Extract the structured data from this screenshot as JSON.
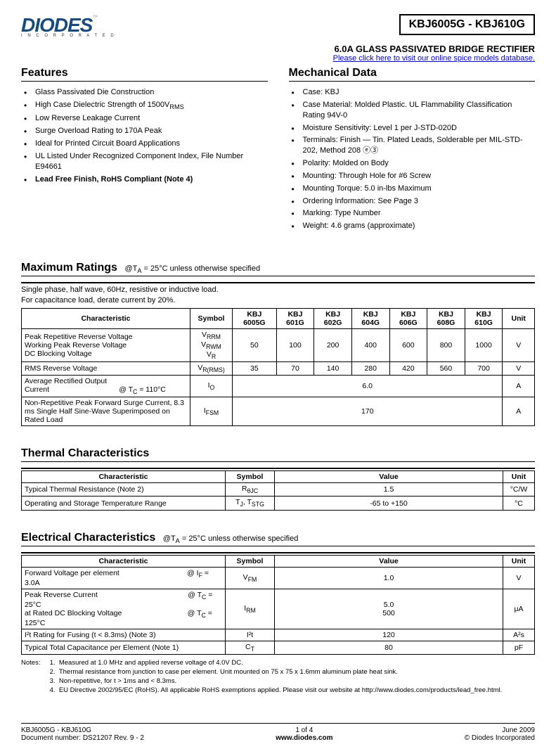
{
  "logo": {
    "text": "DIODES",
    "tm": "™",
    "sub": "I N C O R P O R A T E D"
  },
  "part_number": "KBJ6005G - KBJ610G",
  "subtitle": "6.0A GLASS PASSIVATED BRIDGE RECTIFIER",
  "link": "Please click here to visit our online spice models database.",
  "features": {
    "title": "Features",
    "items": [
      "Glass Passivated Die Construction",
      "High Case Dielectric Strength of 1500V<sub>RMS</sub>",
      "Low Reverse Leakage Current",
      "Surge Overload Rating to 170A Peak",
      "Ideal for Printed Circuit Board Applications",
      "UL Listed Under Recognized Component Index, File Number E94661",
      "<b>Lead Free Finish, RoHS Compliant (Note 4)</b>"
    ]
  },
  "mechanical": {
    "title": "Mechanical Data",
    "items": [
      "Case: KBJ",
      "Case Material:  Molded Plastic.  UL Flammability Classification Rating 94V-0",
      "Moisture Sensitivity:  Level 1 per J-STD-020D",
      "Terminals:  Finish — Tin.  Plated Leads, Solderable per MIL-STD-202, Method 208 ⓔ③",
      "Polarity: Molded on Body",
      "Mounting: Through Hole for #6 Screw",
      "Mounting Torque: 5.0 in-lbs Maximum",
      "Ordering Information:  See Page 3",
      "Marking: Type Number",
      "Weight: 4.6 grams (approximate)"
    ]
  },
  "maxratings": {
    "title": "Maximum Ratings",
    "cond": "@T<sub>A</sub> = 25°C unless otherwise specified",
    "note": "Single phase, half wave, 60Hz, resistive or inductive load.<br>For capacitance load, derate current by 20%.",
    "headers": [
      "Characteristic",
      "Symbol",
      "KBJ 6005G",
      "KBJ 601G",
      "KBJ 602G",
      "KBJ 604G",
      "KBJ 606G",
      "KBJ 608G",
      "KBJ 610G",
      "Unit"
    ],
    "rows": [
      {
        "char": "Peak Repetitive Reverse Voltage<br>Working Peak Reverse Voltage<br>DC Blocking Voltage",
        "sym": "V<sub>RRM</sub><br>V<sub>RWM</sub><br>V<sub>R</sub>",
        "vals": [
          "50",
          "100",
          "200",
          "400",
          "600",
          "800",
          "1000"
        ],
        "unit": "V"
      },
      {
        "char": "RMS Reverse Voltage",
        "sym": "V<sub>R(RMS)</sub>",
        "vals": [
          "35",
          "70",
          "140",
          "280",
          "420",
          "560",
          "700"
        ],
        "unit": "V"
      },
      {
        "char": "Average Rectified Output Current&nbsp;&nbsp;&nbsp;&nbsp;&nbsp;&nbsp;&nbsp;&nbsp;&nbsp;&nbsp;&nbsp;&nbsp;&nbsp;&nbsp;&nbsp;&nbsp;&nbsp;&nbsp;&nbsp;&nbsp;&nbsp;&nbsp;&nbsp;&nbsp;&nbsp;&nbsp;&nbsp;&nbsp;&nbsp;&nbsp;&nbsp;&nbsp;&nbsp;&nbsp;@ T<sub>C</sub> = 110°C",
        "sym": "I<sub>O</sub>",
        "merged": "6.0",
        "unit": "A"
      },
      {
        "char": "Non-Repetitive Peak Forward Surge Current, 8.3 ms Single Half Sine-Wave Superimposed on Rated Load",
        "sym": "I<sub>FSM</sub>",
        "merged": "170",
        "unit": "A"
      }
    ]
  },
  "thermal": {
    "title": "Thermal Characteristics",
    "headers": [
      "Characteristic",
      "Symbol",
      "Value",
      "Unit"
    ],
    "rows": [
      {
        "char": "Typical Thermal Resistance (Note 2)",
        "sym": "R<sub>θJC</sub>",
        "val": "1.5",
        "unit": "°C/W"
      },
      {
        "char": "Operating and Storage Temperature Range",
        "sym": "T<sub>J</sub>, T<sub>STG</sub>",
        "val": "-65 to +150",
        "unit": "°C"
      }
    ]
  },
  "electrical": {
    "title": "Electrical Characteristics",
    "cond": "@T<sub>A</sub> = 25°C unless otherwise specified",
    "headers": [
      "Characteristic",
      "Symbol",
      "Value",
      "Unit"
    ],
    "rows": [
      {
        "char": "Forward Voltage per element&nbsp;&nbsp;&nbsp;&nbsp;&nbsp;&nbsp;&nbsp;&nbsp;&nbsp;&nbsp;&nbsp;&nbsp;&nbsp;&nbsp;&nbsp;&nbsp;&nbsp;&nbsp;&nbsp;&nbsp;&nbsp;&nbsp;&nbsp;&nbsp;&nbsp;&nbsp;&nbsp;&nbsp;&nbsp;&nbsp;&nbsp;&nbsp;&nbsp;@ I<sub>F</sub> = 3.0A",
        "sym": "V<sub>FM</sub>",
        "val": "1.0",
        "unit": "V"
      },
      {
        "char": "Peak Reverse Current&nbsp;&nbsp;&nbsp;&nbsp;&nbsp;&nbsp;&nbsp;&nbsp;&nbsp;&nbsp;&nbsp;&nbsp;&nbsp;&nbsp;&nbsp;&nbsp;&nbsp;&nbsp;&nbsp;&nbsp;&nbsp;&nbsp;&nbsp;&nbsp;&nbsp;&nbsp;&nbsp;&nbsp;&nbsp;&nbsp;&nbsp;&nbsp;&nbsp;&nbsp;&nbsp;&nbsp;&nbsp;&nbsp;&nbsp;&nbsp;&nbsp;&nbsp;&nbsp;&nbsp;@ T<sub>C</sub> =  25°C<br>at Rated DC Blocking Voltage&nbsp;&nbsp;&nbsp;&nbsp;&nbsp;&nbsp;&nbsp;&nbsp;&nbsp;&nbsp;&nbsp;&nbsp;&nbsp;&nbsp;&nbsp;&nbsp;&nbsp;&nbsp;&nbsp;&nbsp;&nbsp;&nbsp;&nbsp;&nbsp;&nbsp;&nbsp;&nbsp;&nbsp;&nbsp;&nbsp;&nbsp;&nbsp;@ T<sub>C</sub> = 125°C",
        "sym": "I<sub>RM</sub>",
        "val": "5.0<br>500",
        "unit": "μA"
      },
      {
        "char": "I²t Rating for Fusing (t < 8.3ms) (Note 3)",
        "sym": "I²t",
        "val": "120",
        "unit": "A²s"
      },
      {
        "char": "Typical Total Capacitance per Element (Note 1)",
        "sym": "C<sub>T</sub>",
        "val": "80",
        "unit": "pF"
      }
    ]
  },
  "notes": {
    "label": "Notes:",
    "items": [
      "1.&nbsp;&nbsp;Measured at 1.0 MHz and applied reverse voltage of 4.0V DC.",
      "2.&nbsp;&nbsp;Thermal resistance from junction to case per element. Unit mounted on 75 x 75 x 1.6mm aluminum plate heat sink.",
      "3.&nbsp;&nbsp;Non-repetitive, for t > 1ms and < 8.3ms.",
      "4.&nbsp;&nbsp;EU Directive 2002/95/EC (RoHS). All applicable RoHS exemptions applied. Please visit our website at http://www.diodes.com/products/lead_free.html."
    ]
  },
  "footer": {
    "left1": "KBJ6005G - KBJ610G",
    "left2": "Document number: DS21207 Rev. 9 - 2",
    "center1": "1 of 4",
    "center2": "www.diodes.com",
    "right1": "June 2009",
    "right2": "© Diodes Incorporated"
  }
}
